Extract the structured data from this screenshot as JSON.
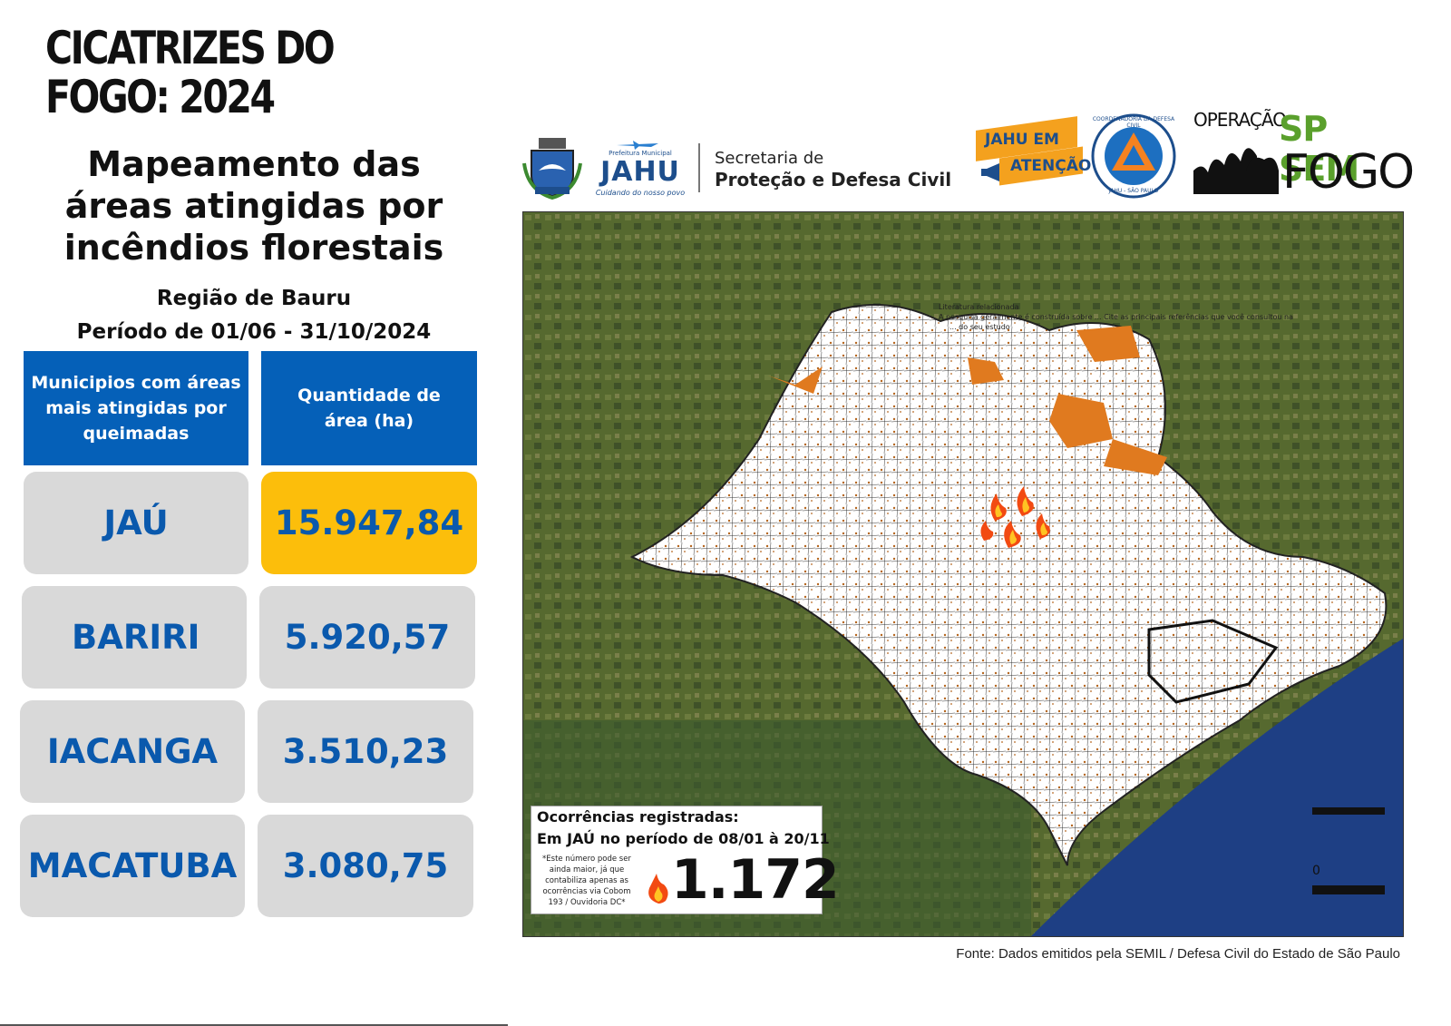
{
  "title": "CICATRIZES DO FOGO: 2024",
  "subtitle": "Mapeamento das áreas atingidas por incêndios florestais",
  "region": "Região de Bauru",
  "period": "Período de 01/06 - 31/10/2024",
  "table": {
    "headers": [
      "Municipios com áreas mais atingidas por queimadas",
      "Quantidade de área (ha)"
    ],
    "rows": [
      {
        "municipio": "JAÚ",
        "area": "15.947,84",
        "highlight": true
      },
      {
        "municipio": "BARIRI",
        "area": "5.920,57"
      },
      {
        "municipio": "IACANGA",
        "area": "3.510,23"
      },
      {
        "municipio": "MACATUBA",
        "area": "3.080,75"
      }
    ]
  },
  "logos": {
    "prefeitura_top": "Prefeitura Municipal",
    "jahu": "JAHU",
    "jahu_slogan": "Cuidando do nosso povo",
    "secretaria_line1": "Secretaria de",
    "secretaria_line2": "Proteção e Defesa Civil",
    "jahu_atencao_1": "JAHU EM",
    "jahu_atencao_2": "ATENÇÃO",
    "coord_ring_top": "COORDENADORIA DA DEFESA CIVIL",
    "coord_ring_bottom": "JAHU - SÃO PAULO",
    "operacao": "OPERAÇÃO",
    "sp_sem": "SP SEM",
    "fogo": "FOGO"
  },
  "map": {
    "faint_text_1": "Literatura relacionada",
    "faint_text_2": "A pesquisa geralmente é construída sobre ... Cite as principais referências que você consultou na",
    "faint_text_3": "... do seu estudo",
    "scale_label": "0"
  },
  "occurrences": {
    "title": "Ocorrências registradas:",
    "subtitle": "Em JAÚ no período de 08/01 à 20/11",
    "note": "*Este número pode ser ainda maior, já que contabiliza apenas as ocorrências via Cobom 193 / Ouvidoria DC*",
    "count": "1.172"
  },
  "source": "Fonte: Dados emitidos pela SEMIL / Defesa Civil do Estado de São Paulo",
  "colors": {
    "header_blue": "#0560b8",
    "cell_gray": "#d9d9d9",
    "highlight_yellow": "#fcbe0b",
    "value_blue": "#0a59ad",
    "burn_orange": "#e07a1f",
    "sp_green": "#5aa02c"
  },
  "icons": [
    "coat-of-arms-icon",
    "airplane-icon",
    "megaphone-icon",
    "civil-defense-triangle-icon",
    "forest-silhouette-icon",
    "fire-icon"
  ]
}
